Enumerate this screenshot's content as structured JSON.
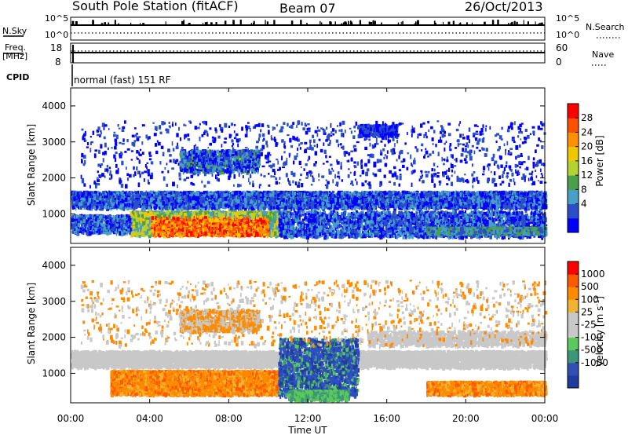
{
  "header": {
    "title": "South Pole Station (fitACF)",
    "beam": "Beam 07",
    "date": "26/Oct/2013"
  },
  "status_panel": {
    "nsky_label": "N.Sky",
    "nsky_ticks": [
      "10^5",
      "10^0"
    ],
    "nsearch_label": "N.Search",
    "nsearch_ticks": [
      "10^5",
      "10^0"
    ],
    "freq_label_1": "Freq.",
    "freq_label_2": "[MHz]",
    "freq_ticks": [
      "18",
      "8"
    ],
    "nave_label": "Nave",
    "nave_ticks": [
      "60",
      "0"
    ],
    "cpid_label": "CPID",
    "cpid_text": "normal (fast) 151 RF"
  },
  "chart_data": [
    {
      "type": "heatmap",
      "name": "power",
      "ylabel": "Slant Range [km]",
      "ylim": [
        180,
        4500
      ],
      "yticks": [
        "1000",
        "2000",
        "3000",
        "4000"
      ],
      "xlim": [
        0,
        24
      ],
      "colorbar_label": "Power [dB]",
      "colorbar_ticks": [
        "28",
        "24",
        "20",
        "16",
        "12",
        "8",
        "4"
      ],
      "colorbar_colors": [
        "#0000ff",
        "#2b4fc8",
        "#46a0c8",
        "#4aa04a",
        "#b4d232",
        "#f0c800",
        "#ff9000",
        "#ff5000",
        "#ff0000"
      ]
    },
    {
      "type": "heatmap",
      "name": "velocity",
      "ylabel": "Slant Range [km]",
      "ylim": [
        180,
        4500
      ],
      "yticks": [
        "1000",
        "2000",
        "3000",
        "4000"
      ],
      "xlim": [
        0,
        24
      ],
      "colorbar_label": "Velocity [m s",
      "colorbar_label_sup": "-1",
      "colorbar_label_end": "]",
      "colorbar_ticks": [
        "1000",
        "500",
        "100",
        "25",
        "-25",
        "-100",
        "-500",
        "-1000"
      ],
      "colorbar_colors": [
        "#1e3ca0",
        "#3250b4",
        "#3c9678",
        "#5ac85a",
        "#c8c8c8",
        "#c8c8c8",
        "#f0b432",
        "#ff8c00",
        "#ff5a00",
        "#ff0000"
      ]
    }
  ],
  "xaxis": {
    "ticks": [
      "00:00",
      "04:00",
      "08:00",
      "12:00",
      "16:00",
      "20:00",
      "00:00"
    ],
    "label": "Time UT"
  }
}
